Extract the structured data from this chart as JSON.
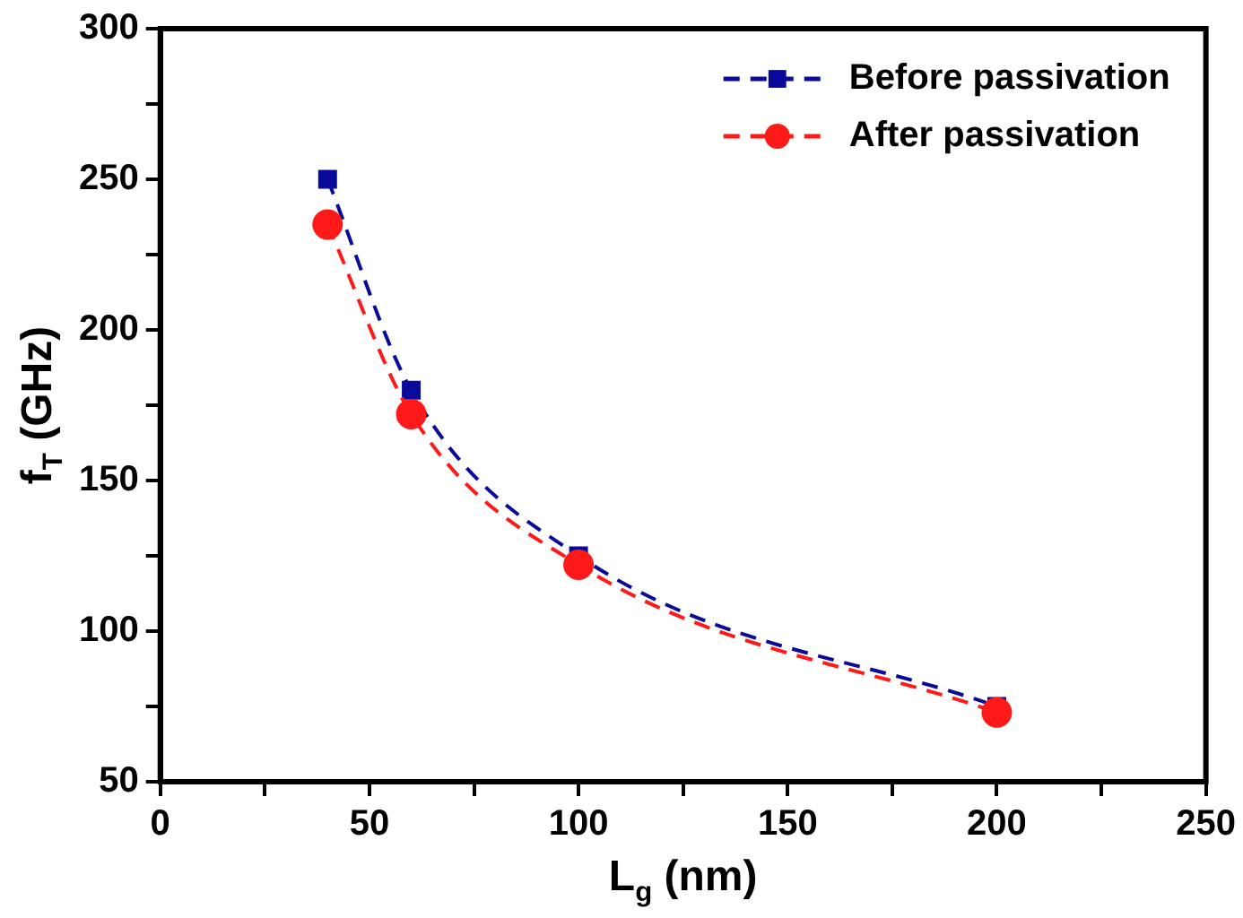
{
  "chart_data": {
    "type": "line",
    "xlabel": "L$_{g}$ (nm)",
    "ylabel": "f$_{T}$ (GHz)",
    "x": [
      40,
      60,
      100,
      200
    ],
    "series": [
      {
        "name": "Before passivation",
        "color": "#0a0a9a",
        "values": [
          250,
          180,
          125,
          75
        ],
        "marker": "square"
      },
      {
        "name": "After passivation",
        "color": "#ff1a1a",
        "values": [
          235,
          172,
          122,
          73
        ],
        "marker": "circle"
      }
    ],
    "xlim": [
      0,
      250
    ],
    "xticks": [
      0,
      {
        "value": 25,
        "label": null
      },
      50,
      {
        "value": 75,
        "label": null
      },
      100,
      {
        "value": 125,
        "label": null
      },
      150,
      {
        "value": 175,
        "label": null
      },
      200,
      {
        "value": 225,
        "label": null
      },
      250
    ],
    "ylim": [
      50,
      300
    ],
    "yticks": [
      50,
      {
        "value": 75,
        "label": null
      },
      100,
      {
        "value": 125,
        "label": null
      },
      150,
      {
        "value": 175,
        "label": null
      },
      200,
      {
        "value": 225,
        "label": null
      },
      250,
      {
        "value": 275,
        "label": null
      },
      300
    ],
    "grid": false,
    "legend": "top right",
    "line_style": "dashed"
  }
}
